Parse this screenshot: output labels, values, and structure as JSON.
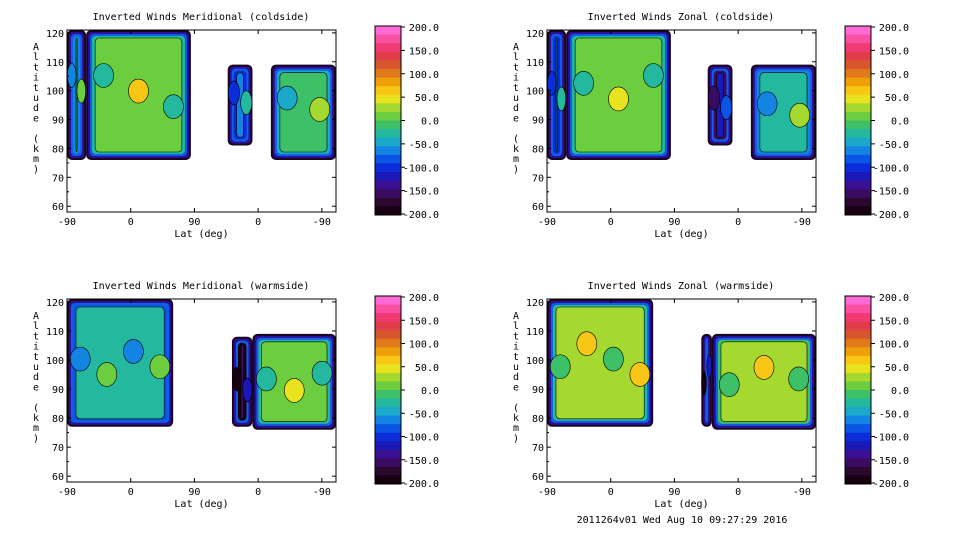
{
  "footer": {
    "text": "2011264v01 Wed Aug 10 09:27:29 2016"
  },
  "colorbar": {
    "ticks": [
      "200.0",
      "150.0",
      "100.0",
      "50.0",
      "0.0",
      "-50.0",
      "-100.0",
      "-150.0",
      "-200.0"
    ],
    "colors": [
      "#ff6ad5",
      "#f950a4",
      "#f03a73",
      "#e13c4a",
      "#d8562d",
      "#e07a1a",
      "#ee9f0a",
      "#f8c614",
      "#e9e21e",
      "#a6d930",
      "#6ccd3f",
      "#3ec068",
      "#24b89f",
      "#1ba8c9",
      "#1384e2",
      "#0a55e6",
      "#0a2dd8",
      "#1a18b6",
      "#3a0f93",
      "#3a0b60",
      "#2a0830",
      "#170010"
    ]
  },
  "chart_data": [
    {
      "type": "heatmap",
      "title": "Inverted Winds Meridional (coldside)",
      "xlabel": "Lat (deg)",
      "ylabel": "Altitude (km)",
      "xticks": [
        "-90",
        "0",
        "90",
        "0",
        "-90"
      ],
      "yticks": [
        "60",
        "70",
        "80",
        "90",
        "100",
        "110",
        "120"
      ],
      "ylim": [
        58,
        121
      ],
      "zlim": [
        -200,
        200
      ],
      "regions": [
        {
          "x": [
            -90,
            -63
          ],
          "y": [
            76,
            121
          ],
          "mean": -30
        },
        {
          "x": [
            -63,
            85
          ],
          "y": [
            76,
            121
          ],
          "mean": 15
        },
        {
          "x": [
            137,
            172
          ],
          "y": [
            81,
            109
          ],
          "mean": -60
        },
        {
          "x": [
            198,
            290
          ],
          "y": [
            76,
            109
          ],
          "mean": -10
        }
      ]
    },
    {
      "type": "heatmap",
      "title": "Inverted Winds Zonal (coldside)",
      "xlabel": "Lat (deg)",
      "ylabel": "Altitude (km)",
      "xticks": [
        "-90",
        "0",
        "90",
        "0",
        "-90"
      ],
      "yticks": [
        "60",
        "70",
        "80",
        "90",
        "100",
        "110",
        "120"
      ],
      "ylim": [
        58,
        121
      ],
      "zlim": [
        -200,
        200
      ],
      "regions": [
        {
          "x": [
            -90,
            -63
          ],
          "y": [
            76,
            121
          ],
          "mean": -60
        },
        {
          "x": [
            -63,
            85
          ],
          "y": [
            76,
            121
          ],
          "mean": 5
        },
        {
          "x": [
            137,
            172
          ],
          "y": [
            81,
            109
          ],
          "mean": -120
        },
        {
          "x": [
            198,
            290
          ],
          "y": [
            76,
            109
          ],
          "mean": -20
        }
      ]
    },
    {
      "type": "heatmap",
      "title": "Inverted Winds Meridional (warmside)",
      "xlabel": "Lat (deg)",
      "ylabel": "Altitude (km)",
      "xticks": [
        "-90",
        "0",
        "90",
        "0",
        "-90"
      ],
      "yticks": [
        "60",
        "70",
        "80",
        "90",
        "100",
        "110",
        "120"
      ],
      "ylim": [
        58,
        121
      ],
      "zlim": [
        -200,
        200
      ],
      "regions": [
        {
          "x": [
            -90,
            60
          ],
          "y": [
            77,
            121
          ],
          "mean": -35
        },
        {
          "x": [
            143,
            172
          ],
          "y": [
            77,
            108
          ],
          "mean": -150
        },
        {
          "x": [
            172,
            290
          ],
          "y": [
            76,
            109
          ],
          "mean": 10
        }
      ]
    },
    {
      "type": "heatmap",
      "title": "Inverted Winds Zonal (warmside)",
      "xlabel": "Lat (deg)",
      "ylabel": "Altitude (km)",
      "xticks": [
        "-90",
        "0",
        "90",
        "0",
        "-90"
      ],
      "yticks": [
        "60",
        "70",
        "80",
        "90",
        "100",
        "110",
        "120"
      ],
      "ylim": [
        58,
        121
      ],
      "zlim": [
        -200,
        200
      ],
      "regions": [
        {
          "x": [
            -90,
            60
          ],
          "y": [
            77,
            121
          ],
          "mean": 20
        },
        {
          "x": [
            128,
            143
          ],
          "y": [
            77,
            109
          ],
          "mean": -160
        },
        {
          "x": [
            143,
            290
          ],
          "y": [
            76,
            109
          ],
          "mean": 25
        }
      ]
    }
  ]
}
